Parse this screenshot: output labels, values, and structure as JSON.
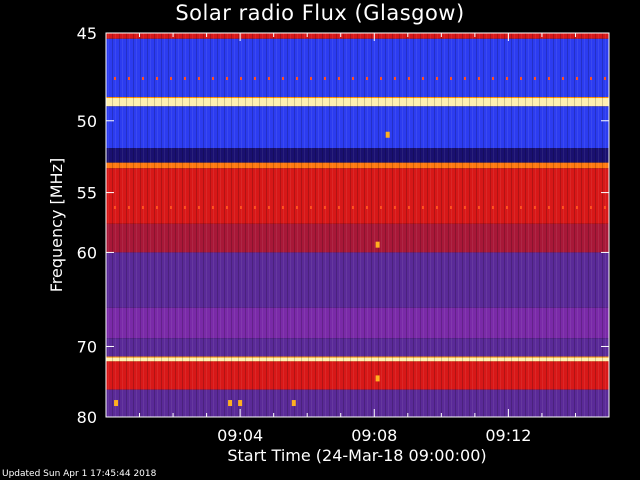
{
  "chart_data": {
    "type": "heatmap",
    "title": "Solar radio Flux (Glasgow)",
    "xlabel": "Start Time (24-Mar-18 09:00:00)",
    "ylabel": "Frequency [MHz]",
    "x_start": "09:00:00",
    "x_end": "09:15:00",
    "x_ticks": [
      "09:04",
      "09:08",
      "09:12"
    ],
    "x_tick_minutes": [
      4,
      8,
      12
    ],
    "ylim": [
      45,
      80
    ],
    "y_ticks": [
      45,
      50,
      55,
      60,
      70,
      80
    ],
    "colorscale": [
      "#1010a0",
      "#2a38ff",
      "#7a2bb0",
      "#c01020",
      "#ff2000",
      "#ff9000",
      "#ffff80"
    ],
    "bands": [
      {
        "from": 45.0,
        "to": 45.3,
        "level": "red"
      },
      {
        "from": 45.3,
        "to": 48.6,
        "level": "blue"
      },
      {
        "from": 48.6,
        "to": 49.1,
        "level": "bright"
      },
      {
        "from": 49.1,
        "to": 51.8,
        "level": "blue"
      },
      {
        "from": 51.8,
        "to": 52.8,
        "level": "dark"
      },
      {
        "from": 52.8,
        "to": 53.2,
        "level": "orange"
      },
      {
        "from": 53.2,
        "to": 57.5,
        "level": "red"
      },
      {
        "from": 57.5,
        "to": 60.0,
        "level": "darkred"
      },
      {
        "from": 60.0,
        "to": 65.5,
        "level": "purple"
      },
      {
        "from": 65.5,
        "to": 69.0,
        "level": "violet"
      },
      {
        "from": 69.0,
        "to": 71.4,
        "level": "purple"
      },
      {
        "from": 71.4,
        "to": 71.9,
        "level": "bright"
      },
      {
        "from": 71.9,
        "to": 75.8,
        "level": "red"
      },
      {
        "from": 75.8,
        "to": 80.0,
        "level": "purple"
      }
    ],
    "bursts": [
      {
        "minute": 8.1,
        "freq": 59.3
      },
      {
        "minute": 8.1,
        "freq": 74.2
      },
      {
        "minute": 8.4,
        "freq": 50.9
      },
      {
        "minute": 0.3,
        "freq": 77.8
      },
      {
        "minute": 3.7,
        "freq": 77.8
      },
      {
        "minute": 4.0,
        "freq": 77.8
      },
      {
        "minute": 5.6,
        "freq": 77.8
      }
    ]
  },
  "footer": "Updated Sun Apr  1 17:45:44 2018"
}
